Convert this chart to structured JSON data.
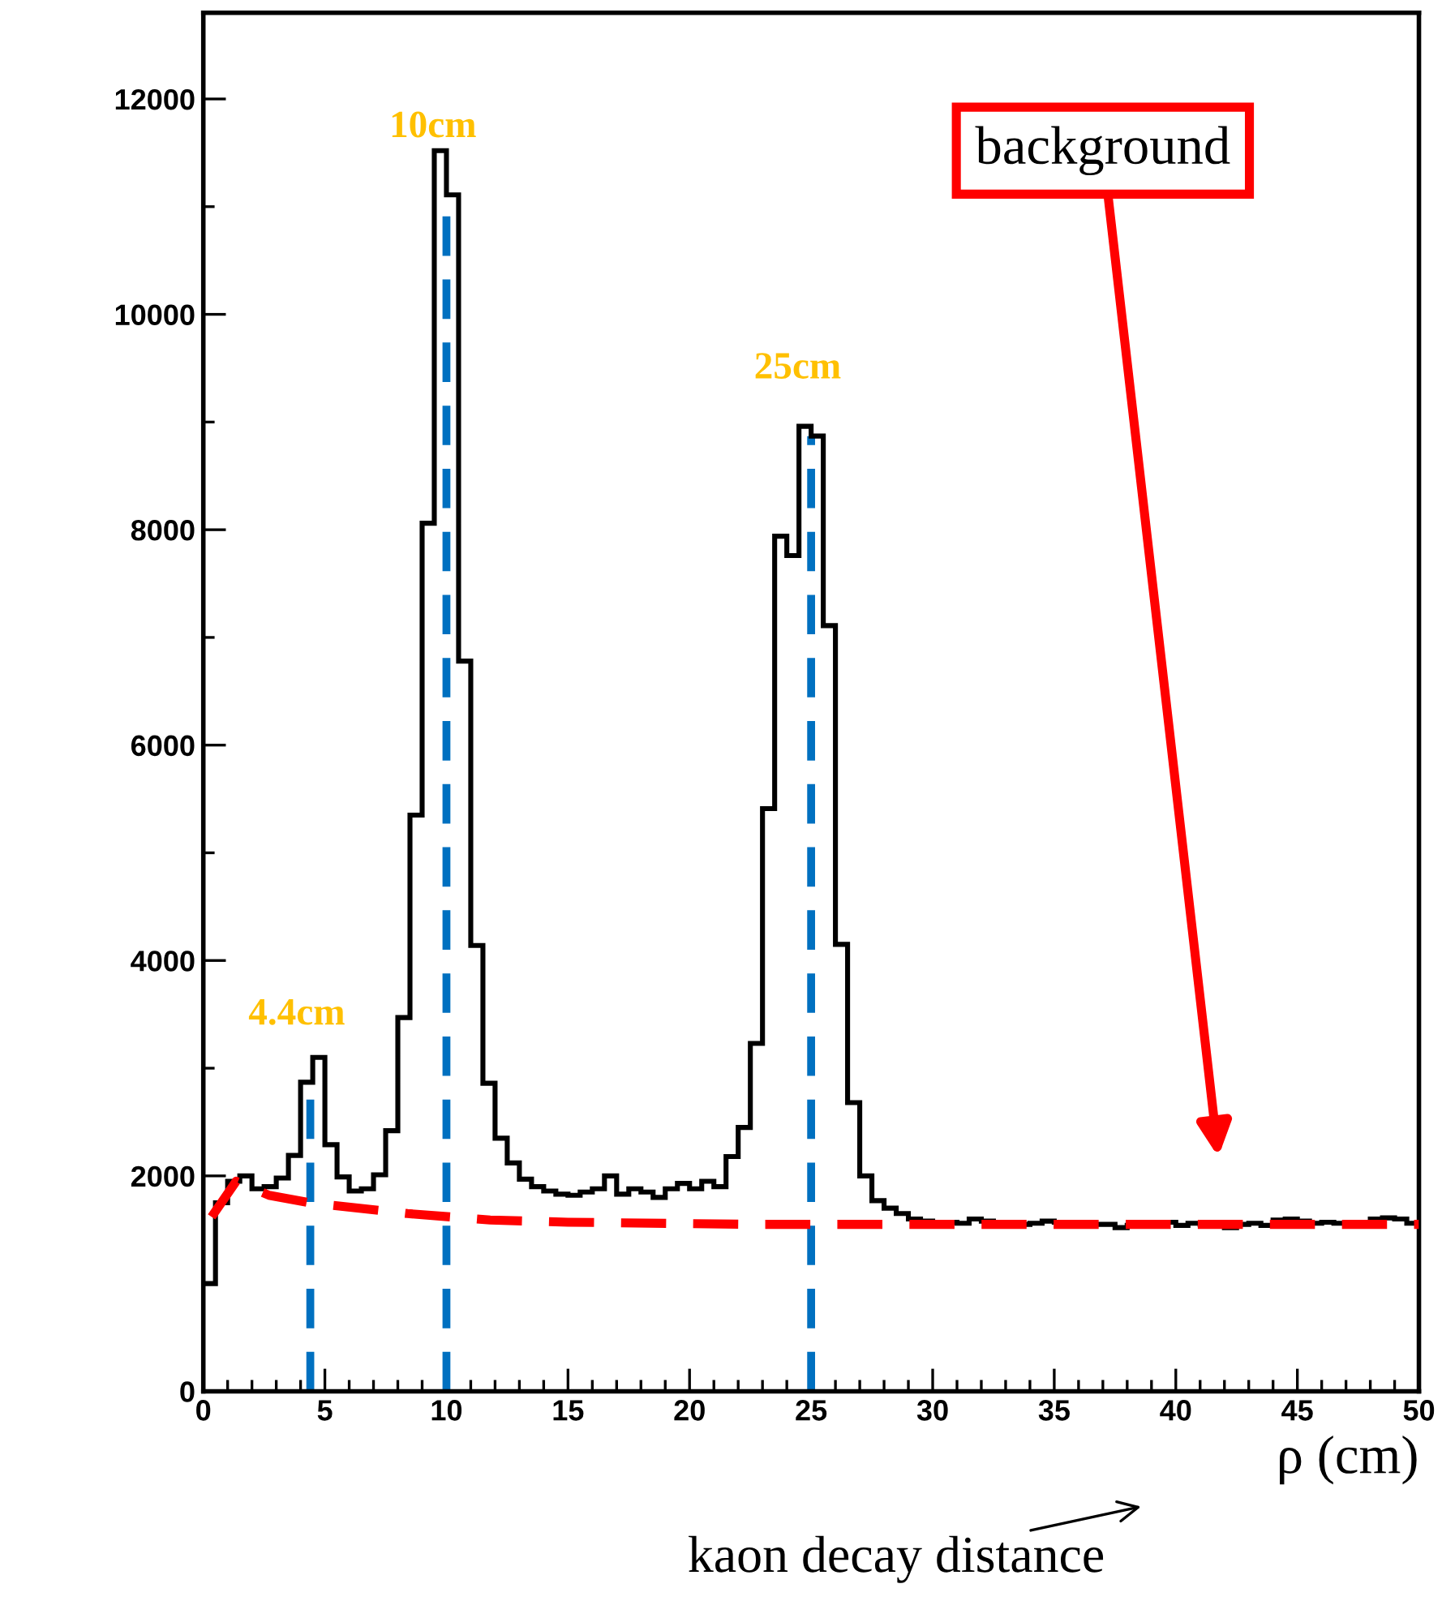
{
  "chart_data": {
    "type": "histogram",
    "xlabel": "ρ (cm)",
    "xlim": [
      0,
      50
    ],
    "xticks": [
      0,
      5,
      10,
      15,
      20,
      25,
      30,
      35,
      40,
      45,
      50
    ],
    "ylim": [
      0,
      12800
    ],
    "yticks": [
      0,
      2000,
      4000,
      6000,
      8000,
      10000,
      12000
    ],
    "bins": [
      0,
      0.5,
      1,
      1.5,
      2,
      2.5,
      3,
      3.5,
      4,
      4.5,
      5,
      5.5,
      6,
      6.5,
      7,
      7.5,
      8,
      8.5,
      9,
      9.5,
      10,
      10.5,
      11,
      11.5,
      12,
      12.5,
      13,
      13.5,
      14,
      14.5,
      15,
      15.5,
      16,
      16.5,
      17,
      17.5,
      18,
      18.5,
      19,
      19.5,
      20,
      20.5,
      21,
      21.5,
      22,
      22.5,
      23,
      23.5,
      24,
      24.5,
      25,
      25.5,
      26,
      26.5,
      27,
      27.5,
      28,
      28.5,
      29,
      29.5,
      30,
      30.5,
      31,
      31.5,
      32,
      32.5,
      33,
      33.5,
      34,
      34.5,
      35,
      35.5,
      36,
      36.5,
      37,
      37.5,
      38,
      38.5,
      39,
      39.5,
      40,
      40.5,
      41,
      41.5,
      42,
      42.5,
      43,
      43.5,
      44,
      44.5,
      45,
      45.5,
      46,
      46.5,
      47,
      47.5,
      48,
      48.5,
      49,
      49.5,
      50
    ],
    "series": [
      {
        "color": "#000000",
        "values": [
          1000,
          1750,
          1950,
          2000,
          1880,
          1900,
          1980,
          2190,
          2870,
          3100,
          2290,
          1990,
          1860,
          1880,
          2010,
          2420,
          3470,
          5350,
          8060,
          11520,
          11110,
          6780,
          4140,
          2860,
          2350,
          2120,
          1970,
          1900,
          1860,
          1830,
          1820,
          1850,
          1880,
          2000,
          1830,
          1880,
          1850,
          1800,
          1880,
          1930,
          1880,
          1950,
          1900,
          2180,
          2450,
          3230,
          5410,
          7940,
          7760,
          8960,
          8870,
          7110,
          4150,
          2680,
          2000,
          1770,
          1700,
          1650,
          1600,
          1580,
          1560,
          1570,
          1560,
          1600,
          1580,
          1560,
          1550,
          1550,
          1560,
          1580,
          1570,
          1560,
          1540,
          1550,
          1550,
          1520,
          1540,
          1560,
          1560,
          1570,
          1540,
          1560,
          1550,
          1540,
          1520,
          1550,
          1560,
          1540,
          1590,
          1600,
          1580,
          1560,
          1570,
          1560,
          1550,
          1570,
          1600,
          1610,
          1600,
          1560
        ]
      },
      {
        "type": "line",
        "name": "background",
        "color": "#ff0000",
        "line_style": "dashed",
        "x": [
          0.34,
          1.35,
          2.7,
          4.4,
          8.4,
          11.8,
          15,
          22.6,
          30,
          40,
          50
        ],
        "values": [
          1620,
          1950,
          1820,
          1750,
          1650,
          1590,
          1570,
          1550,
          1550,
          1550,
          1550
        ]
      }
    ],
    "ref_lines": [
      {
        "axis": "x",
        "value": 4.4,
        "label": "4.4cm",
        "color": "#0070c0",
        "line_style": "dashed"
      },
      {
        "axis": "x",
        "value": 10,
        "label": "10cm",
        "color": "#0070c0",
        "line_style": "dashed"
      },
      {
        "axis": "x",
        "value": 25,
        "label": "25cm",
        "color": "#0070c0",
        "line_style": "dashed"
      }
    ],
    "annotations": [
      "kaon decay distance"
    ],
    "grid": false,
    "legend": false
  }
}
